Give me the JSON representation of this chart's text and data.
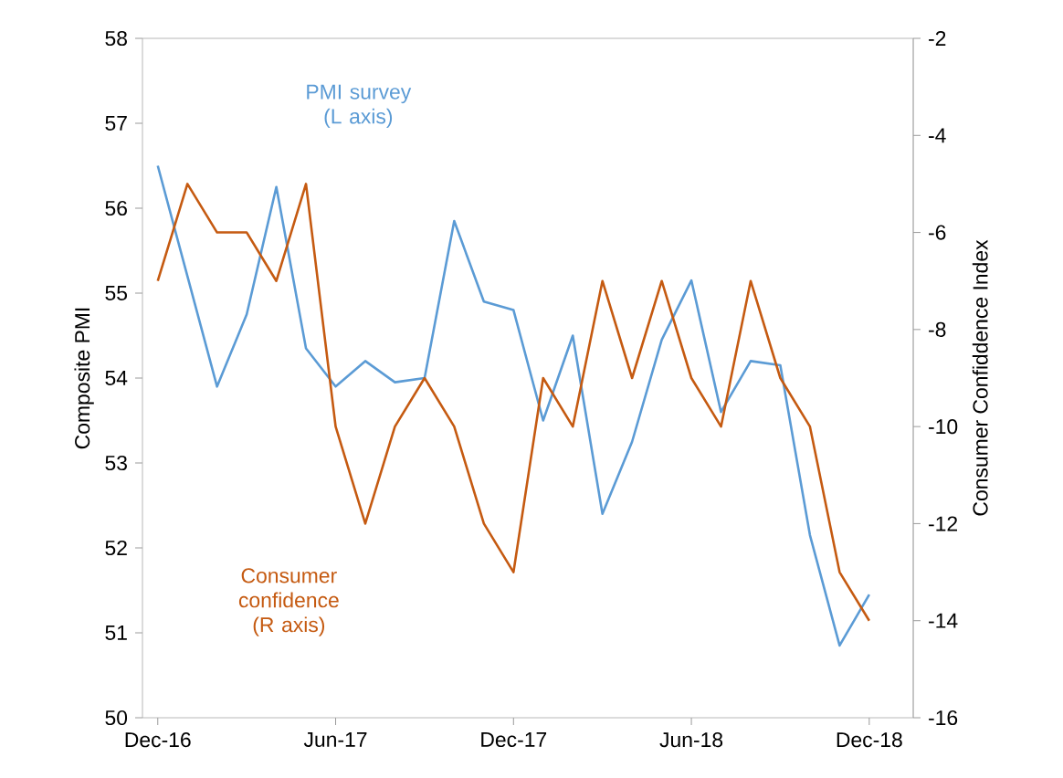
{
  "chart_data": {
    "type": "line",
    "x": [
      "2016-12",
      "2017-01",
      "2017-02",
      "2017-03",
      "2017-04",
      "2017-05",
      "2017-06",
      "2017-07",
      "2017-08",
      "2017-09",
      "2017-10",
      "2017-11",
      "2017-12",
      "2018-01",
      "2018-02",
      "2018-03",
      "2018-04",
      "2018-05",
      "2018-06",
      "2018-07",
      "2018-08",
      "2018-09",
      "2018-10",
      "2018-11",
      "2018-12"
    ],
    "series": [
      {
        "name": "PMI survey (L axis)",
        "color": "#5b9bd5",
        "values": [
          56.5,
          55.2,
          53.9,
          54.75,
          56.25,
          54.35,
          53.9,
          54.2,
          53.95,
          54.0,
          55.85,
          54.9,
          54.8,
          53.5,
          54.5,
          52.4,
          53.25,
          54.45,
          55.15,
          53.6,
          54.2,
          54.15,
          52.15,
          50.85,
          51.45
        ]
      },
      {
        "name": "Consumer confidence (R axis)",
        "color": "#c55a11",
        "axis": "y2",
        "values": [
          -7,
          -5,
          -6,
          -6,
          -7,
          -5,
          -10,
          -12,
          -10,
          -9,
          -10,
          -12,
          -13,
          -9,
          -10,
          -7,
          -9,
          -7,
          -9,
          -10,
          -7,
          -9,
          -10,
          -13,
          -14
        ]
      }
    ],
    "xlim": [
      "2016-11-16",
      "2019-01-16"
    ],
    "xticks": [
      {
        "value": "2016-12",
        "label": "Dec-16"
      },
      {
        "value": "2017-06",
        "label": "Jun-17"
      },
      {
        "value": "2017-12",
        "label": "Dec-17"
      },
      {
        "value": "2018-06",
        "label": "Jun-18"
      },
      {
        "value": "2018-12",
        "label": "Dec-18"
      }
    ],
    "ylim": [
      50,
      58
    ],
    "yticks": [
      50,
      51,
      52,
      53,
      54,
      55,
      56,
      57,
      58
    ],
    "y2lim": [
      -16,
      -2
    ],
    "y2ticks": [
      -16,
      -14,
      -12,
      -10,
      -8,
      -6,
      -4,
      -2
    ],
    "ylabel": "Composite PMI",
    "y2label": "Consumer Confiddence Index"
  }
}
